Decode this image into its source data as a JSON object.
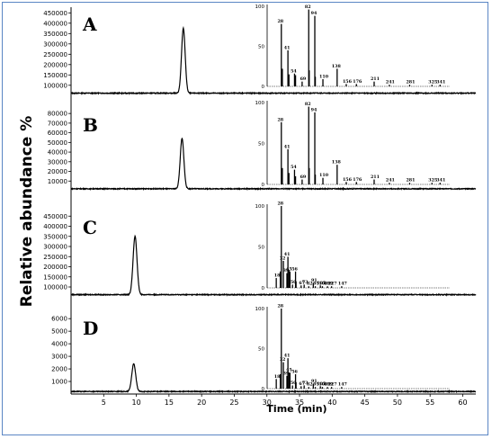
{
  "figure": {
    "ylabel": "Relative abundance %",
    "xlabel": "Time (min)",
    "x_ticks": [
      5,
      10,
      15,
      20,
      25,
      30,
      35,
      40,
      45,
      50,
      55,
      60
    ]
  },
  "chart_data": [
    {
      "type": "line",
      "panel_label": "A",
      "x_unit": "min",
      "xlim": [
        0,
        62
      ],
      "y_ticks": [
        100000,
        150000,
        200000,
        250000,
        300000,
        350000,
        400000,
        450000
      ],
      "ylim": [
        60000,
        460000
      ],
      "baseline": 62000,
      "peak": {
        "x": 17.2,
        "y": 375000,
        "width": 0.28
      },
      "mass_spectrum": {
        "y_ticks": [
          0,
          50,
          100
        ],
        "ylim": [
          0,
          100
        ],
        "peaks": [
          {
            "x": 28,
            "y": 78,
            "label": "28"
          },
          {
            "x": 30,
            "y": 22
          },
          {
            "x": 41,
            "y": 45,
            "label": "41"
          },
          {
            "x": 43,
            "y": 15
          },
          {
            "x": 54,
            "y": 16,
            "label": "54"
          },
          {
            "x": 56,
            "y": 14
          },
          {
            "x": 69,
            "y": 6,
            "label": "69"
          },
          {
            "x": 82,
            "y": 96,
            "label": "82"
          },
          {
            "x": 83,
            "y": 20
          },
          {
            "x": 94,
            "y": 88,
            "label": "94"
          },
          {
            "x": 95,
            "y": 12
          },
          {
            "x": 110,
            "y": 9,
            "label": "110"
          },
          {
            "x": 138,
            "y": 22,
            "label": "138"
          },
          {
            "x": 156,
            "y": 3,
            "label": "156"
          },
          {
            "x": 176,
            "y": 3,
            "label": "176"
          },
          {
            "x": 211,
            "y": 6,
            "label": "211"
          },
          {
            "x": 241,
            "y": 2,
            "label": "241"
          },
          {
            "x": 281,
            "y": 2,
            "label": "281"
          },
          {
            "x": 325,
            "y": 2,
            "label": "325"
          },
          {
            "x": 341,
            "y": 2,
            "label": "341"
          }
        ]
      }
    },
    {
      "type": "line",
      "panel_label": "B",
      "x_unit": "min",
      "xlim": [
        0,
        62
      ],
      "y_ticks": [
        10000,
        20000,
        30000,
        40000,
        50000,
        60000,
        70000,
        80000
      ],
      "ylim": [
        0,
        82000
      ],
      "baseline": 2000,
      "peak": {
        "x": 17.0,
        "y": 54000,
        "width": 0.28
      },
      "mass_spectrum": {
        "y_ticks": [
          0,
          50,
          100
        ],
        "ylim": [
          0,
          100
        ],
        "peaks": [
          {
            "x": 28,
            "y": 76,
            "label": "28"
          },
          {
            "x": 30,
            "y": 20
          },
          {
            "x": 41,
            "y": 43,
            "label": "41"
          },
          {
            "x": 43,
            "y": 14
          },
          {
            "x": 54,
            "y": 18,
            "label": "54"
          },
          {
            "x": 56,
            "y": 10
          },
          {
            "x": 69,
            "y": 6,
            "label": "69"
          },
          {
            "x": 82,
            "y": 95,
            "label": "82"
          },
          {
            "x": 83,
            "y": 20
          },
          {
            "x": 94,
            "y": 88,
            "label": "94"
          },
          {
            "x": 95,
            "y": 12
          },
          {
            "x": 110,
            "y": 8,
            "label": "110"
          },
          {
            "x": 138,
            "y": 24,
            "label": "138"
          },
          {
            "x": 156,
            "y": 3,
            "label": "156"
          },
          {
            "x": 176,
            "y": 3,
            "label": "176"
          },
          {
            "x": 211,
            "y": 6,
            "label": "211"
          },
          {
            "x": 241,
            "y": 2,
            "label": "241"
          },
          {
            "x": 281,
            "y": 2,
            "label": "281"
          },
          {
            "x": 325,
            "y": 2,
            "label": "325"
          },
          {
            "x": 341,
            "y": 2,
            "label": "341"
          }
        ]
      }
    },
    {
      "type": "line",
      "panel_label": "C",
      "x_unit": "min",
      "xlim": [
        0,
        62
      ],
      "y_ticks": [
        100000,
        150000,
        200000,
        250000,
        300000,
        350000,
        400000,
        450000
      ],
      "ylim": [
        60000,
        460000
      ],
      "baseline": 62000,
      "peak": {
        "x": 9.8,
        "y": 350000,
        "width": 0.3
      },
      "mass_spectrum": {
        "y_ticks": [
          0,
          50,
          100
        ],
        "ylim": [
          0,
          100
        ],
        "peaks": [
          {
            "x": 18,
            "y": 12,
            "label": "18"
          },
          {
            "x": 26,
            "y": 20
          },
          {
            "x": 28,
            "y": 100,
            "label": "28"
          },
          {
            "x": 32,
            "y": 33,
            "label": "32"
          },
          {
            "x": 39,
            "y": 18,
            "label": "39"
          },
          {
            "x": 41,
            "y": 38,
            "label": "41"
          },
          {
            "x": 43,
            "y": 22
          },
          {
            "x": 45,
            "y": 20,
            "label": "45"
          },
          {
            "x": 50,
            "y": 4,
            "label": "50"
          },
          {
            "x": 56,
            "y": 20,
            "label": "56"
          },
          {
            "x": 57,
            "y": 8
          },
          {
            "x": 67,
            "y": 3,
            "label": "67"
          },
          {
            "x": 73,
            "y": 4,
            "label": "73"
          },
          {
            "x": 82,
            "y": 2,
            "label": "82"
          },
          {
            "x": 91,
            "y": 6,
            "label": "91"
          },
          {
            "x": 95,
            "y": 2,
            "label": "95"
          },
          {
            "x": 105,
            "y": 3,
            "label": "105"
          },
          {
            "x": 109,
            "y": 2,
            "label": "109"
          },
          {
            "x": 119,
            "y": 2,
            "label": "119"
          },
          {
            "x": 127,
            "y": 2,
            "label": "127"
          },
          {
            "x": 147,
            "y": 2,
            "label": "147"
          }
        ]
      }
    },
    {
      "type": "line",
      "panel_label": "D",
      "x_unit": "min",
      "xlim": [
        0,
        62
      ],
      "y_ticks": [
        1000,
        2000,
        3000,
        4000,
        5000,
        6000
      ],
      "ylim": [
        0,
        6300
      ],
      "baseline": 200,
      "peak": {
        "x": 9.6,
        "y": 2400,
        "width": 0.3
      },
      "mass_spectrum": {
        "y_ticks": [
          0,
          50,
          100
        ],
        "ylim": [
          0,
          100
        ],
        "peaks": [
          {
            "x": 18,
            "y": 12,
            "label": "18"
          },
          {
            "x": 26,
            "y": 18
          },
          {
            "x": 28,
            "y": 100,
            "label": "28"
          },
          {
            "x": 32,
            "y": 33,
            "label": "32"
          },
          {
            "x": 39,
            "y": 16,
            "label": "39"
          },
          {
            "x": 41,
            "y": 38,
            "label": "41"
          },
          {
            "x": 43,
            "y": 20
          },
          {
            "x": 45,
            "y": 20,
            "label": "45"
          },
          {
            "x": 50,
            "y": 4,
            "label": "50"
          },
          {
            "x": 56,
            "y": 18,
            "label": "56"
          },
          {
            "x": 57,
            "y": 8
          },
          {
            "x": 67,
            "y": 3,
            "label": "67"
          },
          {
            "x": 73,
            "y": 4,
            "label": "73"
          },
          {
            "x": 82,
            "y": 2,
            "label": "82"
          },
          {
            "x": 91,
            "y": 6,
            "label": "91"
          },
          {
            "x": 95,
            "y": 2,
            "label": "95"
          },
          {
            "x": 105,
            "y": 3,
            "label": "105"
          },
          {
            "x": 109,
            "y": 2,
            "label": "109"
          },
          {
            "x": 119,
            "y": 2,
            "label": "119"
          },
          {
            "x": 127,
            "y": 2,
            "label": "127"
          },
          {
            "x": 147,
            "y": 2,
            "label": "147"
          }
        ]
      }
    }
  ]
}
